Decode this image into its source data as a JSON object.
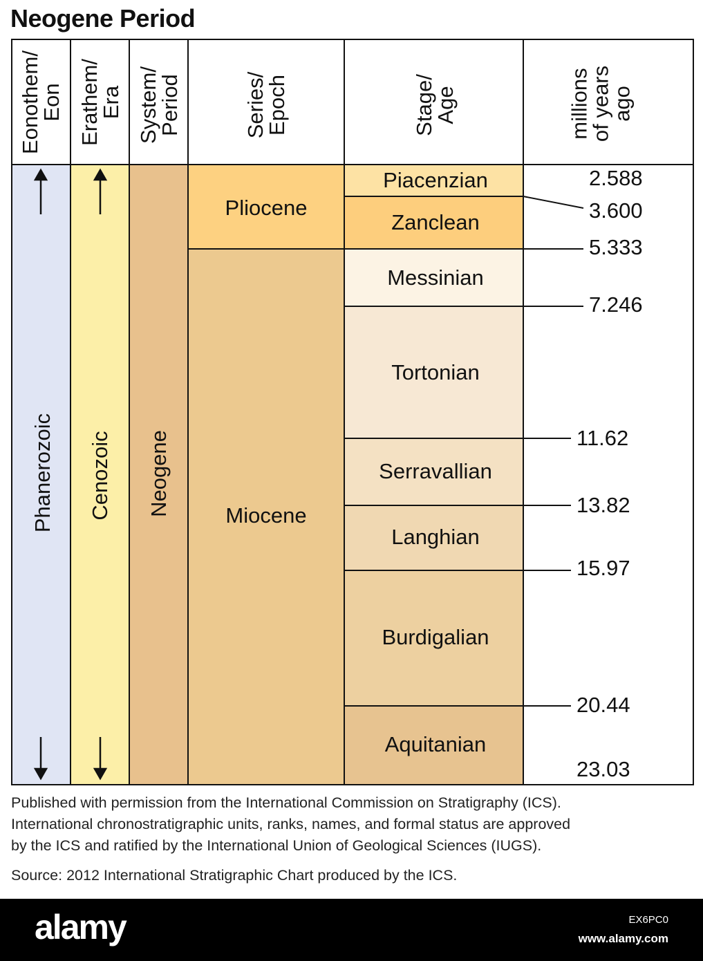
{
  "title": "Neogene Period",
  "headers": {
    "eon": "Eonothem/\nEon",
    "era": "Erathem/\nEra",
    "period": "System/\nPeriod",
    "epoch": "Series/\nEpoch",
    "stage": "Stage/\nAge",
    "mya": "millions\nof years\nago"
  },
  "units": {
    "eon": "Phanerozoic",
    "era": "Cenozoic",
    "period": "Neogene"
  },
  "epochs": [
    "Pliocene",
    "Miocene"
  ],
  "stages": [
    "Piacenzian",
    "Zanclean",
    "Messinian",
    "Tortonian",
    "Serravallian",
    "Langhian",
    "Burdigalian",
    "Aquitanian"
  ],
  "ages": [
    "2.588",
    "3.600",
    "5.333",
    "7.246",
    "11.62",
    "13.82",
    "15.97",
    "20.44",
    "23.03"
  ],
  "colors": {
    "eon": "#e0e5f4",
    "era": "#fcefa8",
    "period": "#e8c18d",
    "pliocene": "#fdd181",
    "miocene": "#ecc98f",
    "piacenzian": "#fde2a4",
    "zanclean": "#fdce7d",
    "messinian": "#fcf3e4",
    "tortonian": "#f7e8d4",
    "serravallian": "#f4e1c3",
    "langhian": "#f0d8b2",
    "burdigalian": "#edd0a0",
    "aquitanian": "#e7c390"
  },
  "footer": {
    "line1": "Published with permission from the International Commission on Stratigraphy (ICS).",
    "line2": "International chronostratigraphic units, ranks, names, and formal status are approved",
    "line3": "by the ICS and ratified by the International Union of Geological Sciences (IUGS).",
    "source": "Source: 2012 International Stratigraphic Chart produced by the ICS."
  },
  "watermark": {
    "logo": "alamy",
    "image_id": "EX6PC0",
    "url": "www.alamy.com"
  }
}
